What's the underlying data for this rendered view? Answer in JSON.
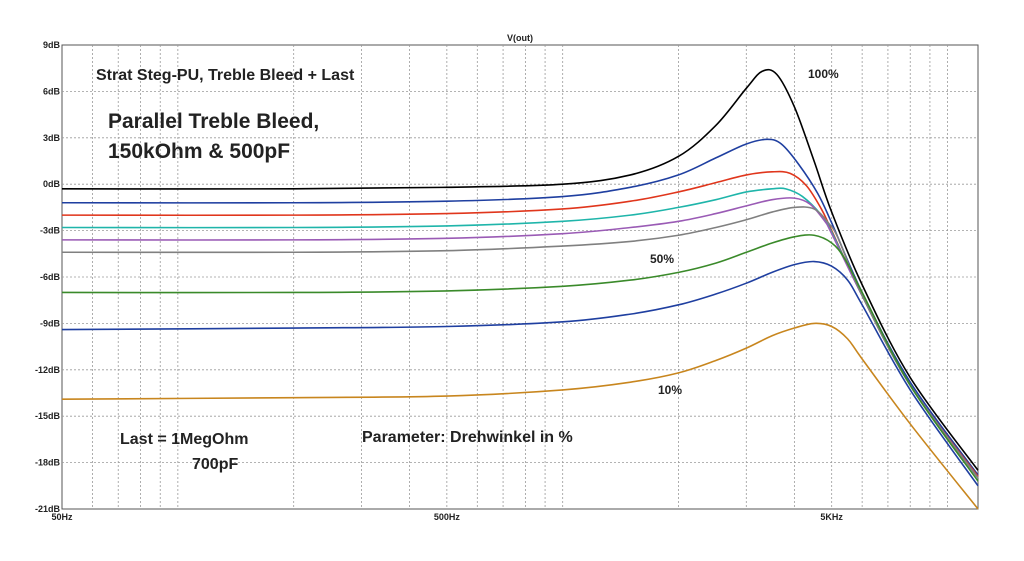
{
  "chart_data": {
    "type": "line",
    "title": "V(out)",
    "xscale": "log",
    "xlim": [
      50,
      12000
    ],
    "ylim": [
      -21,
      9
    ],
    "grid": true,
    "x_ticks": [
      {
        "v": 50,
        "label": "50Hz"
      },
      {
        "v": 500,
        "label": "500Hz"
      },
      {
        "v": 5000,
        "label": "5KHz"
      }
    ],
    "y_ticks": [
      {
        "v": 9,
        "label": "9dB"
      },
      {
        "v": 6,
        "label": "6dB"
      },
      {
        "v": 3,
        "label": "3dB"
      },
      {
        "v": 0,
        "label": "0dB"
      },
      {
        "v": -3,
        "label": "-3dB"
      },
      {
        "v": -6,
        "label": "-6dB"
      },
      {
        "v": -9,
        "label": "-9dB"
      },
      {
        "v": -12,
        "label": "-12dB"
      },
      {
        "v": -15,
        "label": "-15dB"
      },
      {
        "v": -18,
        "label": "-18dB"
      },
      {
        "v": -21,
        "label": "-21dB"
      }
    ],
    "annotations": [
      {
        "id": "subtitle",
        "text": "Strat Steg-PU, Treble Bleed + Last"
      },
      {
        "id": "treble1",
        "text": "Parallel Treble Bleed,"
      },
      {
        "id": "treble2",
        "text": "150kOhm & 500pF"
      },
      {
        "id": "last1",
        "text": "Last = 1MegOhm"
      },
      {
        "id": "last2",
        "text": "700pF"
      },
      {
        "id": "param",
        "text": "Parameter: Drehwinkel in %"
      },
      {
        "id": "p100",
        "text": "100%"
      },
      {
        "id": "p50",
        "text": "50%"
      },
      {
        "id": "p10",
        "text": "10%"
      }
    ],
    "series": [
      {
        "color": "#000000",
        "x": [
          50,
          200,
          500,
          1000,
          1500,
          2000,
          2500,
          3000,
          3300,
          3600,
          4000,
          4500,
          5000,
          6000,
          8000,
          12000
        ],
        "y": [
          -0.3,
          -0.3,
          -0.2,
          0.0,
          0.6,
          1.8,
          3.8,
          6.2,
          7.3,
          7.1,
          5.0,
          1.5,
          -1.8,
          -6.5,
          -12.5,
          -18.5
        ]
      },
      {
        "color": "#1f3fa0",
        "x": [
          50,
          200,
          500,
          1000,
          1500,
          2000,
          2500,
          3000,
          3400,
          3700,
          4100,
          4600,
          5000,
          6000,
          8000,
          12000
        ],
        "y": [
          -1.2,
          -1.2,
          -1.1,
          -0.8,
          -0.2,
          0.6,
          1.7,
          2.6,
          2.9,
          2.6,
          1.3,
          -0.6,
          -2.5,
          -7.0,
          -12.8,
          -18.8
        ]
      },
      {
        "color": "#e0361c",
        "x": [
          50,
          200,
          500,
          1000,
          1500,
          2000,
          2500,
          3000,
          3500,
          3900,
          4300,
          4700,
          5000,
          6000,
          8000,
          12000
        ],
        "y": [
          -2.0,
          -2.0,
          -1.9,
          -1.6,
          -1.1,
          -0.5,
          0.1,
          0.6,
          0.8,
          0.7,
          -0.1,
          -1.6,
          -3.0,
          -7.2,
          -13.0,
          -18.9
        ]
      },
      {
        "color": "#1fb5aa",
        "x": [
          50,
          200,
          500,
          1000,
          1500,
          2000,
          2500,
          3000,
          3500,
          3800,
          4200,
          4700,
          5000,
          6000,
          8000,
          12000
        ],
        "y": [
          -2.8,
          -2.8,
          -2.7,
          -2.4,
          -2.0,
          -1.5,
          -1.0,
          -0.5,
          -0.3,
          -0.3,
          -0.8,
          -2.0,
          -3.1,
          -7.2,
          -13.0,
          -19.0
        ]
      },
      {
        "color": "#9a5bb5",
        "x": [
          50,
          200,
          500,
          1000,
          1500,
          2000,
          2500,
          3000,
          3500,
          4000,
          4400,
          4800,
          5000,
          6000,
          8000,
          12000
        ],
        "y": [
          -3.6,
          -3.6,
          -3.5,
          -3.2,
          -2.8,
          -2.4,
          -1.9,
          -1.4,
          -1.0,
          -0.9,
          -1.3,
          -2.4,
          -3.2,
          -7.2,
          -13.0,
          -19.0
        ]
      },
      {
        "color": "#808080",
        "x": [
          50,
          200,
          500,
          1000,
          1500,
          2000,
          2500,
          3000,
          3500,
          4000,
          4500,
          4900,
          5200,
          6000,
          8000,
          12000
        ],
        "y": [
          -4.4,
          -4.4,
          -4.3,
          -4.0,
          -3.7,
          -3.3,
          -2.8,
          -2.3,
          -1.8,
          -1.5,
          -1.6,
          -2.5,
          -3.5,
          -7.2,
          -13.0,
          -19.0
        ]
      },
      {
        "color": "#3a8a2a",
        "x": [
          50,
          200,
          500,
          1000,
          1500,
          2000,
          2500,
          3000,
          3500,
          4000,
          4500,
          5000,
          5400,
          6000,
          8000,
          12000
        ],
        "y": [
          -7.0,
          -7.0,
          -6.9,
          -6.6,
          -6.2,
          -5.7,
          -5.1,
          -4.4,
          -3.8,
          -3.4,
          -3.3,
          -3.8,
          -4.8,
          -7.0,
          -13.0,
          -19.2
        ]
      },
      {
        "color": "#1f3fa0",
        "x": [
          50,
          200,
          500,
          1000,
          1500,
          2000,
          2500,
          3000,
          3500,
          4000,
          4500,
          5000,
          5500,
          6000,
          8000,
          12000
        ],
        "y": [
          -9.4,
          -9.3,
          -9.2,
          -8.9,
          -8.4,
          -7.8,
          -7.1,
          -6.4,
          -5.7,
          -5.2,
          -5.0,
          -5.3,
          -6.2,
          -7.8,
          -13.3,
          -19.5
        ]
      },
      {
        "color": "#c8861e",
        "x": [
          50,
          200,
          500,
          1000,
          1500,
          2000,
          2500,
          3000,
          3500,
          4000,
          4500,
          5000,
          5500,
          6000,
          8000,
          12000
        ],
        "y": [
          -13.9,
          -13.8,
          -13.7,
          -13.3,
          -12.8,
          -12.2,
          -11.4,
          -10.6,
          -9.8,
          -9.3,
          -9.0,
          -9.2,
          -10.0,
          -11.3,
          -15.5,
          -21.0
        ]
      }
    ]
  }
}
